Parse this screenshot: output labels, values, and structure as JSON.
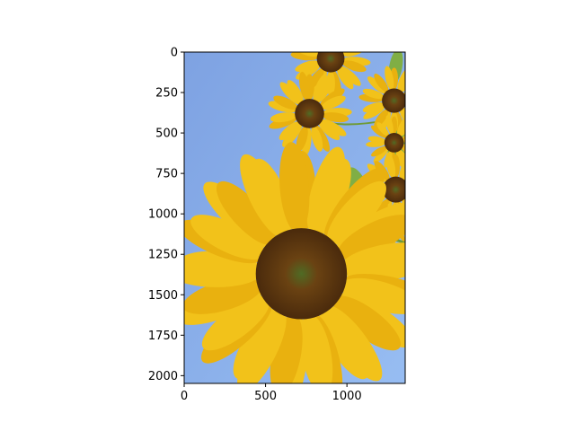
{
  "chart_data": {
    "type": "image",
    "title": "",
    "xlabel": "",
    "ylabel": "",
    "image_width": 1358,
    "image_height": 2048,
    "xlim": [
      0,
      1358
    ],
    "ylim": [
      2048,
      0
    ],
    "x_ticks": [
      0,
      500,
      1000
    ],
    "y_ticks": [
      0,
      250,
      500,
      750,
      1000,
      1250,
      1500,
      1750,
      2000
    ],
    "grid": false,
    "legend": "none",
    "content": "photo of sunflowers against a blue sky",
    "colors": {
      "sky": "#86a9e6",
      "petal": "#f2c21a",
      "disk": "#5a3412",
      "leaf": "#7fae3c"
    }
  }
}
